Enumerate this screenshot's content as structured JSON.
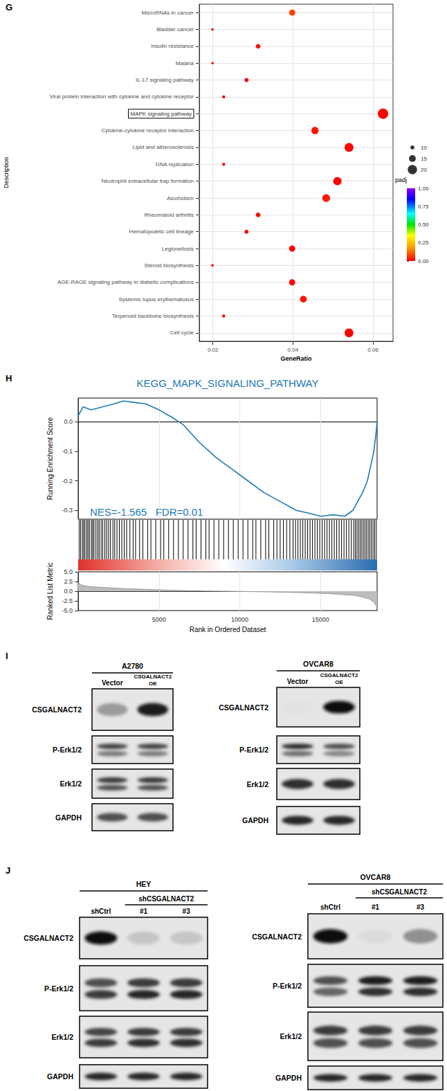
{
  "chart_data": [
    {
      "type": "scatter",
      "panel": "G",
      "x_label": "GeneRatio",
      "y_label": "Description",
      "categories": [
        "MicroRNAs in cancer",
        "Bladder cancer",
        "Insulin resistance",
        "Malaria",
        "IL-17 signaling pathway",
        "Viral protein interaction with cytokine and cytokine receptor",
        "MAPK signaling pathway",
        "Cytokine-cytokine receptor interaction",
        "Lipid and atherosclerosis",
        "DNA replication",
        "Neutrophil extracellular trap formation",
        "Alcoholism",
        "Rheumatoid arthritis",
        "Hematopoietic cell lineage",
        "Legionellosis",
        "Steroid biosynthesis",
        "AGE-RAGE signaling pathway in diabetic complications",
        "Systemic lupus erythematosus",
        "Terpenoid backbone biosynthesis",
        "Cell cycle"
      ],
      "values": [
        0.0398,
        0.0199,
        0.0313,
        0.0199,
        0.0284,
        0.0227,
        0.0625,
        0.0455,
        0.054,
        0.0227,
        0.0511,
        0.0483,
        0.0313,
        0.0284,
        0.0398,
        0.0199,
        0.0398,
        0.0426,
        0.0227,
        0.054
      ],
      "sizes": [
        14,
        7,
        11,
        7,
        10,
        8,
        22,
        16,
        19,
        8,
        18,
        17,
        11,
        10,
        14,
        7,
        14,
        15,
        8,
        19
      ],
      "padj": [
        0.08,
        0.02,
        0.02,
        0.02,
        0.01,
        0.01,
        0.001,
        0.02,
        0.001,
        0.01,
        0.001,
        0.03,
        0.01,
        0.01,
        0.001,
        0.01,
        0.01,
        0.02,
        0.01,
        0.001
      ],
      "xlim": [
        0.0166,
        0.065
      ],
      "xticks": [
        0.02,
        0.04,
        0.06
      ],
      "size_legend": [
        10,
        15,
        20
      ],
      "color_label": "padj",
      "color_range": [
        0,
        1
      ],
      "color_ticks": [
        {
          "value": 0,
          "label": "0.00"
        },
        {
          "value": 0.25,
          "label": "0.25"
        },
        {
          "value": 0.5,
          "label": "0.50"
        },
        {
          "value": 0.75,
          "label": "0.75"
        },
        {
          "value": 1,
          "label": "1.00"
        }
      ],
      "grid": true,
      "annotations": [
        {
          "boxed": "MAPK signaling pathway"
        }
      ]
    },
    {
      "type": "gsea",
      "panel": "H",
      "title": "KEGG_MAPK_SIGNALING_PATHWAY",
      "annotations": [
        "NES=-1.565   FDR=0.01"
      ],
      "x_label": "Rank in Ordered Dataset",
      "xlim": [
        0,
        18500
      ],
      "xticks": [
        5000,
        10000,
        15000
      ],
      "grid": true,
      "enrichment": {
        "y_label": "Running Enrichment Score",
        "x": [
          0,
          300,
          800,
          1500,
          2200,
          2800,
          3500,
          4200,
          5000,
          5800,
          6500,
          7500,
          8500,
          9500,
          10500,
          11500,
          12500,
          13500,
          14300,
          15000,
          15800,
          16500,
          17000,
          17300,
          17600,
          17900,
          18100,
          18300,
          18450,
          18500
        ],
        "values": [
          0.02,
          0.05,
          0.04,
          0.05,
          0.06,
          0.07,
          0.065,
          0.06,
          0.04,
          0.015,
          -0.01,
          -0.07,
          -0.12,
          -0.16,
          -0.2,
          -0.24,
          -0.27,
          -0.3,
          -0.31,
          -0.32,
          -0.315,
          -0.32,
          -0.3,
          -0.27,
          -0.24,
          -0.2,
          -0.15,
          -0.1,
          -0.03,
          0.0
        ],
        "ylim": [
          -0.33,
          0.08
        ],
        "yticks": [
          -0.3,
          -0.2,
          -0.1,
          {
            "value": 0,
            "label": "0.0"
          }
        ]
      },
      "hits": [
        60,
        150,
        260,
        340,
        420,
        530,
        610,
        700,
        820,
        900,
        980,
        1100,
        1210,
        1300,
        1420,
        1520,
        1650,
        1760,
        1880,
        2000,
        2150,
        2260,
        2400,
        2550,
        2700,
        2850,
        3000,
        3200,
        3400,
        3550,
        3800,
        4000,
        4300,
        4500,
        4800,
        5100,
        5300,
        5600,
        5900,
        6200,
        6500,
        6800,
        7100,
        7300,
        7600,
        7900,
        8100,
        8400,
        8700,
        9000,
        9300,
        9600,
        9900,
        10200,
        10500,
        10800,
        11000,
        11300,
        11600,
        11800,
        12100,
        12300,
        12500,
        12700,
        12900,
        13100,
        13300,
        13450,
        13600,
        13750,
        13900,
        14050,
        14200,
        14350,
        14500,
        14650,
        14800,
        14950,
        15100,
        15250,
        15400,
        15550,
        15700,
        15850,
        16000,
        16150,
        16300,
        16450,
        16600,
        16750,
        16900,
        17050,
        17150,
        17250,
        17350,
        17450,
        17550,
        17650,
        17750,
        17850,
        17950,
        18050,
        18150,
        18250,
        18350,
        18450
      ],
      "ranked_metric": {
        "y_label": "Ranked List Metric",
        "x": [
          0,
          200,
          500,
          1000,
          2000,
          3000,
          4000,
          5000,
          6000,
          7000,
          8000,
          9000,
          10000,
          11000,
          12000,
          13000,
          14000,
          15000,
          16000,
          17000,
          17500,
          18000,
          18300,
          18450,
          18500
        ],
        "values": [
          2.2,
          1.6,
          1.3,
          1.1,
          0.85,
          0.65,
          0.5,
          0.35,
          0.22,
          0.12,
          0.05,
          0.0,
          -0.05,
          -0.12,
          -0.2,
          -0.3,
          -0.4,
          -0.55,
          -0.75,
          -1.05,
          -1.4,
          -2.0,
          -2.8,
          -3.8,
          -4.6
        ],
        "ylim": [
          -5,
          5
        ],
        "yticks": [
          {
            "value": -5,
            "label": "-5.0"
          },
          {
            "value": -2.5,
            "label": "-2.5"
          },
          {
            "value": 0,
            "label": "0.0"
          },
          {
            "value": 2.5,
            "label": "2.5"
          },
          {
            "value": 5,
            "label": "5.0"
          }
        ]
      }
    }
  ],
  "western_blots": [
    {
      "panel": "I",
      "blots": [
        {
          "cell_line": "A2780",
          "lanes": [
            [
              "Vector"
            ],
            [
              "CSGALNACT2",
              "OE"
            ]
          ],
          "rows": [
            {
              "label": "CSGALNACT2",
              "bands": [
                [
                  0.35
                ],
                [
                  0.95
                ]
              ]
            },
            {
              "label": "P-Erk1/2",
              "bands": [
                [
                  0.75,
                  0.5
                ],
                [
                  0.75,
                  0.5
                ]
              ]
            },
            {
              "label": "Erk1/2",
              "bands": [
                [
                  0.8,
                  0.7
                ],
                [
                  0.8,
                  0.7
                ]
              ]
            },
            {
              "label": "GAPDH",
              "bands": [
                [
                  0.7
                ],
                [
                  0.7
                ]
              ]
            }
          ]
        },
        {
          "cell_line": "OVCAR8",
          "lanes": [
            [
              "Vector"
            ],
            [
              "CSGALNACT2",
              "OE"
            ]
          ],
          "rows": [
            {
              "label": "CSGALNACT2",
              "bands": [
                [
                  0.02
                ],
                [
                  1.0
                ]
              ]
            },
            {
              "label": "P-Erk1/2",
              "bands": [
                [
                  0.85,
                  0.55
                ],
                [
                  0.7,
                  0.45
                ]
              ]
            },
            {
              "label": "Erk1/2",
              "bands": [
                [
                  0.85
                ],
                [
                  0.85
                ]
              ]
            },
            {
              "label": "GAPDH",
              "bands": [
                [
                  0.9
                ],
                [
                  0.9
                ]
              ]
            }
          ]
        }
      ]
    },
    {
      "panel": "J",
      "blots": [
        {
          "cell_line": "HEY",
          "lanes": [
            [
              "shCtrl"
            ],
            [
              "#1"
            ],
            [
              "#3"
            ]
          ],
          "groups": [
            {
              "label": "shCSGALNACT2",
              "lanes": [
                1,
                2
              ]
            }
          ],
          "rows": [
            {
              "label": "CSGALNACT2",
              "bands": [
                [
                  1.0
                ],
                [
                  0.15
                ],
                [
                  0.15
                ]
              ]
            },
            {
              "label": "P-Erk1/2",
              "bands": [
                [
                  0.7,
                  0.8
                ],
                [
                  0.8,
                  0.9
                ],
                [
                  0.8,
                  0.9
                ]
              ]
            },
            {
              "label": "Erk1/2",
              "bands": [
                [
                  0.75,
                  0.8
                ],
                [
                  0.8,
                  0.85
                ],
                [
                  0.8,
                  0.85
                ]
              ]
            },
            {
              "label": "GAPDH",
              "bands": [
                [
                  0.9
                ],
                [
                  0.9
                ],
                [
                  0.9
                ]
              ]
            }
          ]
        },
        {
          "cell_line": "OVCAR8",
          "lanes": [
            [
              "shCtrl"
            ],
            [
              "#1"
            ],
            [
              "#3"
            ]
          ],
          "groups": [
            {
              "label": "shCSGALNACT2",
              "lanes": [
                1,
                2
              ]
            }
          ],
          "rows": [
            {
              "label": "CSGALNACT2",
              "bands": [
                [
                  1.0
                ],
                [
                  0.05
                ],
                [
                  0.4
                ]
              ]
            },
            {
              "label": "P-Erk1/2",
              "bands": [
                [
                  0.7,
                  0.6
                ],
                [
                  0.95,
                  0.85
                ],
                [
                  0.95,
                  0.85
                ]
              ]
            },
            {
              "label": "Erk1/2",
              "bands": [
                [
                  0.8,
                  0.7
                ],
                [
                  0.8,
                  0.7
                ],
                [
                  0.8,
                  0.7
                ]
              ]
            },
            {
              "label": "GAPDH",
              "bands": [
                [
                  0.9
                ],
                [
                  0.9
                ],
                [
                  0.9
                ]
              ]
            }
          ]
        }
      ]
    }
  ]
}
